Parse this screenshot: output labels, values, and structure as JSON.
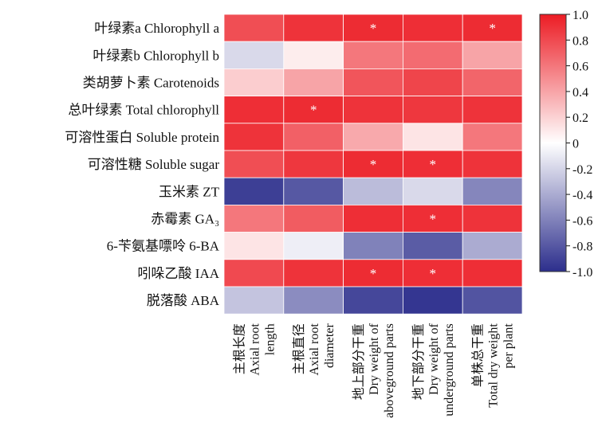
{
  "chart_data": {
    "type": "heatmap",
    "rows": [
      "叶绿素a Chlorophyll a",
      "叶绿素b Chlorophyll b",
      "类胡萝卜素 Carotenoids",
      "总叶绿素 Total chlorophyll",
      "可溶性蛋白 Soluble protein",
      "可溶性糖 Soluble sugar",
      "玉米素 ZT",
      "赤霉素 GA₃",
      "6-苄氨基嘌呤 6-BA",
      "吲哚乙酸 IAA",
      "脱落酸 ABA"
    ],
    "columns": [
      [
        "主根长度",
        "Axial root",
        "length"
      ],
      [
        "主根直径",
        "Axial root",
        "diameter"
      ],
      [
        "地上部分干重",
        "Dry weight of",
        "aboveground parts"
      ],
      [
        "地下部分干重",
        "Dry weight of",
        "underground parts"
      ],
      [
        "单株总干重",
        "Total dry weight",
        "per plant"
      ]
    ],
    "values": [
      [
        0.78,
        0.9,
        0.93,
        0.92,
        0.93
      ],
      [
        -0.18,
        0.08,
        0.6,
        0.65,
        0.4
      ],
      [
        0.22,
        0.4,
        0.75,
        0.82,
        0.68
      ],
      [
        0.92,
        0.93,
        0.9,
        0.88,
        0.9
      ],
      [
        0.9,
        0.7,
        0.38,
        0.12,
        0.6
      ],
      [
        0.78,
        0.88,
        0.93,
        0.92,
        0.9
      ],
      [
        -0.92,
        -0.8,
        -0.32,
        -0.18,
        -0.58
      ],
      [
        0.6,
        0.72,
        0.92,
        0.92,
        0.9
      ],
      [
        0.12,
        -0.08,
        -0.6,
        -0.78,
        -0.4
      ],
      [
        0.8,
        0.9,
        0.93,
        0.92,
        0.92
      ],
      [
        -0.28,
        -0.55,
        -0.88,
        -0.96,
        -0.82
      ]
    ],
    "significance": [
      [
        false,
        false,
        true,
        false,
        true
      ],
      [
        false,
        false,
        false,
        false,
        false
      ],
      [
        false,
        false,
        false,
        false,
        false
      ],
      [
        false,
        true,
        false,
        false,
        false
      ],
      [
        false,
        false,
        false,
        false,
        false
      ],
      [
        false,
        false,
        true,
        true,
        false
      ],
      [
        false,
        false,
        false,
        false,
        false
      ],
      [
        false,
        false,
        false,
        true,
        false
      ],
      [
        false,
        false,
        false,
        false,
        false
      ],
      [
        false,
        false,
        true,
        true,
        false
      ],
      [
        false,
        false,
        false,
        false,
        false
      ]
    ],
    "significance_symbol": "*",
    "colorbar": {
      "range": [
        -1.0,
        1.0
      ],
      "ticks": [
        1.0,
        0.8,
        0.6,
        0.4,
        0.2,
        0,
        -0.2,
        -0.4,
        -0.6,
        -0.8,
        -1.0
      ],
      "tick_labels": [
        "1.0",
        "0.8",
        "0.6",
        "0.4",
        "0.2",
        "0",
        "-0.2",
        "-0.4",
        "-0.6",
        "-0.8",
        "-1.0"
      ],
      "colors": {
        "negative": "#2c2e8c",
        "zero": "#ffffff",
        "positive": "#ec1c24"
      }
    }
  }
}
